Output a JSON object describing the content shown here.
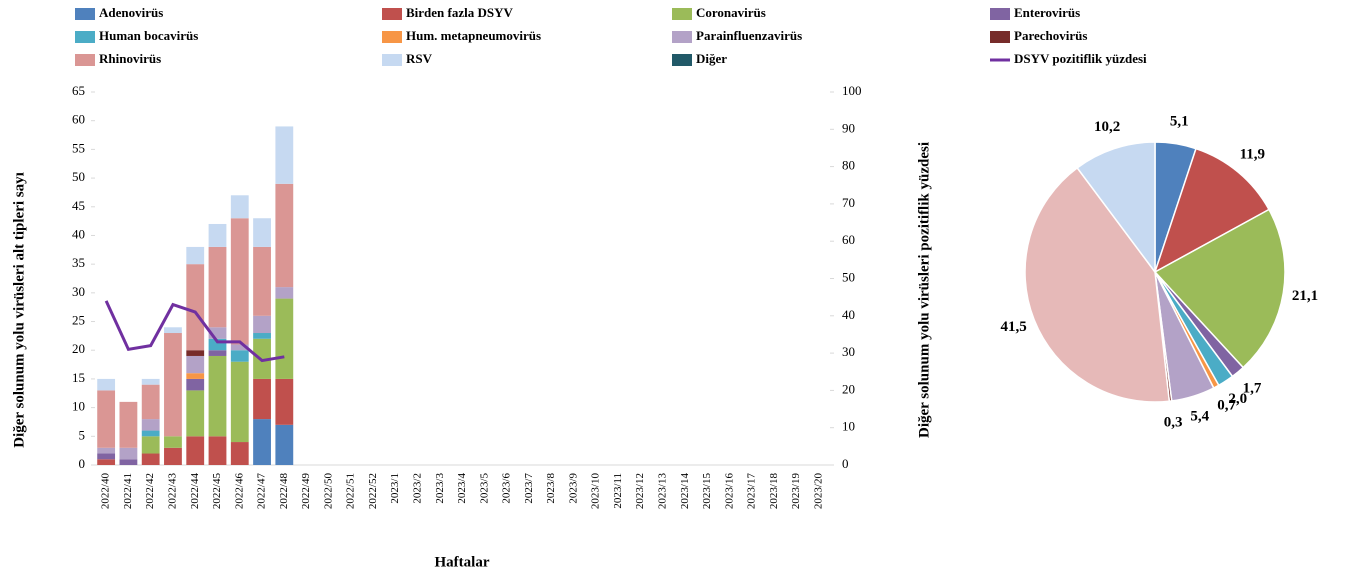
{
  "chart_data": [
    {
      "type": "bar",
      "stacked": true,
      "x_label": "Haftalar",
      "y_label": "Diğer solunum yolu virüsleri alt tipleri sayı",
      "y2_label": "Diğer solunum yolu virüsleri pozitiflik yüzdesi",
      "categories": [
        "2022/40",
        "2022/41",
        "2022/42",
        "2022/43",
        "2022/44",
        "2022/45",
        "2022/46",
        "2022/47",
        "2022/48",
        "2022/49",
        "2022/50",
        "2022/51",
        "2022/52",
        "2023/1",
        "2023/2",
        "2023/3",
        "2023/4",
        "2023/5",
        "2023/6",
        "2023/7",
        "2023/8",
        "2023/9",
        "2023/10",
        "2023/11",
        "2023/12",
        "2023/13",
        "2023/14",
        "2023/15",
        "2023/16",
        "2023/17",
        "2023/18",
        "2023/19",
        "2023/20"
      ],
      "ylim": [
        0,
        65
      ],
      "yticks": [
        0,
        5,
        10,
        15,
        20,
        25,
        30,
        35,
        40,
        45,
        50,
        55,
        60,
        65
      ],
      "y2lim": [
        0,
        100
      ],
      "y2ticks": [
        0,
        10,
        20,
        30,
        40,
        50,
        60,
        70,
        80,
        90,
        100
      ],
      "series": [
        {
          "name": "Adenovirüs",
          "color": "#4f81bd",
          "values": [
            0,
            0,
            0,
            0,
            0,
            0,
            0,
            8,
            7,
            null,
            null,
            null,
            null,
            null,
            null,
            null,
            null,
            null,
            null,
            null,
            null,
            null,
            null,
            null,
            null,
            null,
            null,
            null,
            null,
            null,
            null,
            null,
            null
          ]
        },
        {
          "name": "Birden fazla DSYV",
          "color": "#c0504d",
          "values": [
            1,
            0,
            2,
            3,
            5,
            5,
            4,
            7,
            8,
            null,
            null,
            null,
            null,
            null,
            null,
            null,
            null,
            null,
            null,
            null,
            null,
            null,
            null,
            null,
            null,
            null,
            null,
            null,
            null,
            null,
            null,
            null,
            null
          ]
        },
        {
          "name": "Coronavirüs",
          "color": "#9bbb59",
          "values": [
            0,
            0,
            3,
            2,
            8,
            14,
            14,
            7,
            14,
            null,
            null,
            null,
            null,
            null,
            null,
            null,
            null,
            null,
            null,
            null,
            null,
            null,
            null,
            null,
            null,
            null,
            null,
            null,
            null,
            null,
            null,
            null,
            null
          ]
        },
        {
          "name": "Enterovirüs",
          "color": "#8064a2",
          "values": [
            1,
            1,
            0,
            0,
            2,
            1,
            0,
            0,
            0,
            null,
            null,
            null,
            null,
            null,
            null,
            null,
            null,
            null,
            null,
            null,
            null,
            null,
            null,
            null,
            null,
            null,
            null,
            null,
            null,
            null,
            null,
            null,
            null
          ]
        },
        {
          "name": "Human bocavirüs",
          "color": "#4bacc6",
          "values": [
            0,
            0,
            1,
            0,
            0,
            2,
            2,
            1,
            0,
            null,
            null,
            null,
            null,
            null,
            null,
            null,
            null,
            null,
            null,
            null,
            null,
            null,
            null,
            null,
            null,
            null,
            null,
            null,
            null,
            null,
            null,
            null,
            null
          ]
        },
        {
          "name": "Hum. metapneumovirüs",
          "color": "#f79646",
          "values": [
            0,
            0,
            0,
            0,
            1,
            0,
            0,
            0,
            0,
            null,
            null,
            null,
            null,
            null,
            null,
            null,
            null,
            null,
            null,
            null,
            null,
            null,
            null,
            null,
            null,
            null,
            null,
            null,
            null,
            null,
            null,
            null,
            null
          ]
        },
        {
          "name": "Parainfluenzavirüs",
          "color": "#b3a2c7",
          "values": [
            1,
            2,
            2,
            0,
            3,
            2,
            1,
            3,
            2,
            null,
            null,
            null,
            null,
            null,
            null,
            null,
            null,
            null,
            null,
            null,
            null,
            null,
            null,
            null,
            null,
            null,
            null,
            null,
            null,
            null,
            null,
            null,
            null
          ]
        },
        {
          "name": "Parechovirüs",
          "color": "#772c2a",
          "values": [
            0,
            0,
            0,
            0,
            1,
            0,
            0,
            0,
            0,
            null,
            null,
            null,
            null,
            null,
            null,
            null,
            null,
            null,
            null,
            null,
            null,
            null,
            null,
            null,
            null,
            null,
            null,
            null,
            null,
            null,
            null,
            null,
            null
          ]
        },
        {
          "name": "Rhinovirüs",
          "color": "#da9694",
          "values": [
            10,
            8,
            6,
            18,
            15,
            14,
            22,
            12,
            18,
            null,
            null,
            null,
            null,
            null,
            null,
            null,
            null,
            null,
            null,
            null,
            null,
            null,
            null,
            null,
            null,
            null,
            null,
            null,
            null,
            null,
            null,
            null,
            null
          ]
        },
        {
          "name": "RSV",
          "color": "#c6d9f1",
          "values": [
            2,
            0,
            1,
            1,
            3,
            4,
            4,
            5,
            10,
            null,
            null,
            null,
            null,
            null,
            null,
            null,
            null,
            null,
            null,
            null,
            null,
            null,
            null,
            null,
            null,
            null,
            null,
            null,
            null,
            null,
            null,
            null,
            null
          ]
        },
        {
          "name": "Diğer",
          "color": "#215968",
          "values": [
            0,
            0,
            0,
            0,
            0,
            0,
            0,
            0,
            0,
            null,
            null,
            null,
            null,
            null,
            null,
            null,
            null,
            null,
            null,
            null,
            null,
            null,
            null,
            null,
            null,
            null,
            null,
            null,
            null,
            null,
            null,
            null,
            null
          ]
        },
        {
          "name": "DSYV pozitiflik yüzdesi",
          "type": "line",
          "axis": "y2",
          "color": "#7030a0",
          "values": [
            44,
            31,
            32,
            43,
            41,
            33,
            33,
            28,
            29,
            null,
            null,
            null,
            null,
            null,
            null,
            null,
            null,
            null,
            null,
            null,
            null,
            null,
            null,
            null,
            null,
            null,
            null,
            null,
            null,
            null,
            null,
            null,
            null
          ]
        }
      ]
    },
    {
      "type": "pie",
      "values": [
        5.1,
        11.9,
        21.1,
        1.7,
        2.0,
        0.7,
        5.4,
        0.3,
        41.5,
        10.2
      ],
      "value_labels": [
        "5,1",
        "11,9",
        "21,1",
        "1,7",
        "2,0",
        "0,7",
        "5,4",
        "0,3",
        "41,5",
        "10,2"
      ],
      "colors": [
        "#4f81bd",
        "#c0504d",
        "#9bbb59",
        "#8064a2",
        "#4bacc6",
        "#f79646",
        "#b3a2c7",
        "#772c2a",
        "#e6b9b8",
        "#c6d9f1"
      ]
    }
  ]
}
